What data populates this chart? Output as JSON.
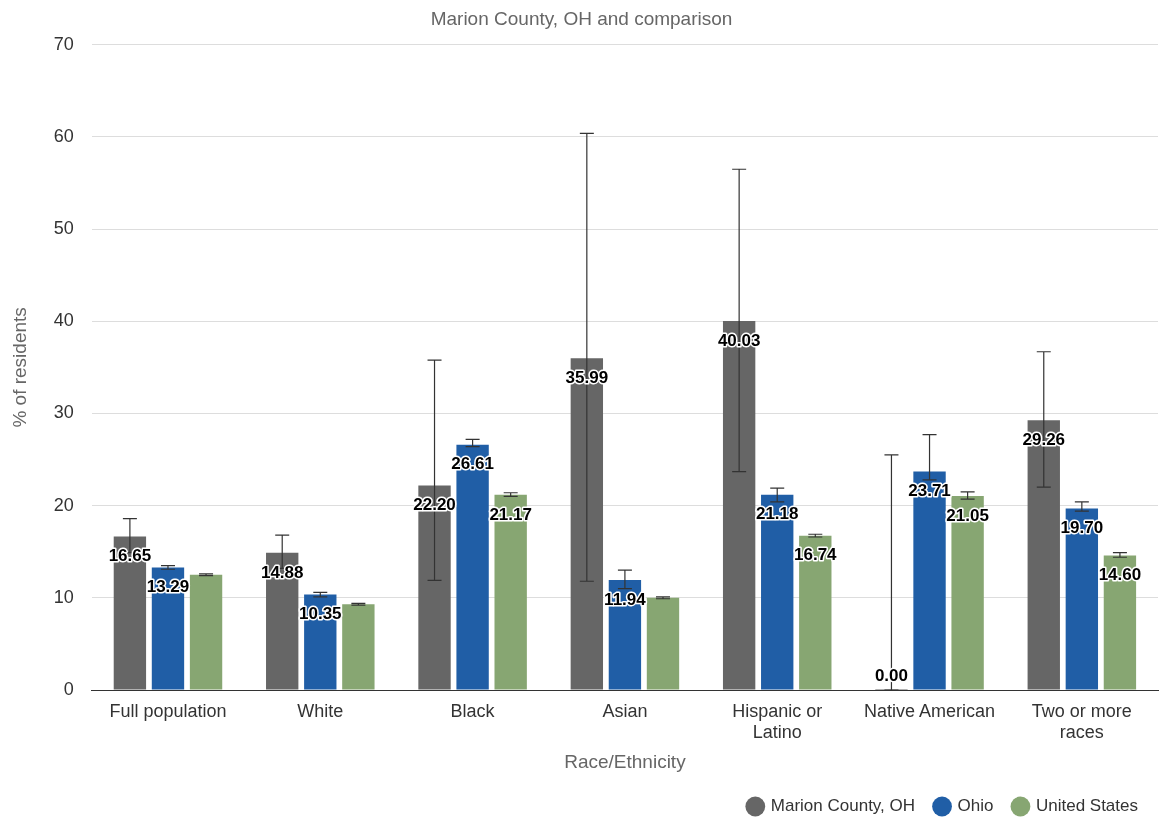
{
  "chart_data": {
    "type": "bar",
    "title": "Marion County, OH and comparison",
    "xlabel": "Race/Ethnicity",
    "ylabel": "% of residents",
    "categories": [
      "Full population",
      "White",
      "Black",
      "Asian",
      "Hispanic or Latino",
      "Native American",
      "Two or more races"
    ],
    "series": [
      {
        "name": "Marion County, OH",
        "color": "#666666",
        "values": [
          16.65,
          14.88,
          22.2,
          35.99,
          40.03,
          0,
          29.26
        ],
        "value_labels": [
          "16.65",
          "14.88",
          "22.20",
          "35.99",
          "40.03",
          "0.00",
          "29.26"
        ],
        "errors": [
          [
            14.9,
            18.6
          ],
          [
            13.2,
            16.8
          ],
          [
            11.9,
            35.8
          ],
          [
            11.8,
            60.4
          ],
          [
            23.7,
            56.5
          ],
          [
            0,
            25.5
          ],
          [
            22.0,
            36.7
          ]
        ]
      },
      {
        "name": "Ohio",
        "color": "#205ea6",
        "values": [
          13.29,
          10.35,
          26.61,
          11.94,
          21.18,
          23.71,
          19.7
        ],
        "value_labels": [
          "13.29",
          "10.35",
          "26.61",
          "11.94",
          "21.18",
          "23.71",
          "19.70"
        ],
        "errors": [
          [
            13.1,
            13.5
          ],
          [
            10.1,
            10.6
          ],
          [
            26.4,
            27.2
          ],
          [
            11.0,
            13.0
          ],
          [
            20.4,
            21.9
          ],
          [
            22.8,
            27.7
          ],
          [
            19.4,
            20.4
          ]
        ]
      },
      {
        "name": "United States",
        "color": "#87a672",
        "values": [
          12.5,
          9.3,
          21.17,
          10.0,
          16.74,
          21.05,
          14.6
        ],
        "value_labels": [
          null,
          null,
          "21.17",
          null,
          "16.74",
          "21.05",
          "14.60"
        ],
        "errors": [
          [
            12.4,
            12.6
          ],
          [
            9.2,
            9.4
          ],
          [
            21.0,
            21.4
          ],
          [
            9.9,
            10.1
          ],
          [
            16.6,
            16.9
          ],
          [
            20.7,
            21.5
          ],
          [
            14.4,
            14.9
          ]
        ]
      }
    ],
    "ylim": [
      0,
      70
    ],
    "yticks": [
      0,
      10,
      20,
      30,
      40,
      50,
      60,
      70
    ],
    "grid": "y",
    "legend": "bottom right",
    "marker": "circle"
  }
}
